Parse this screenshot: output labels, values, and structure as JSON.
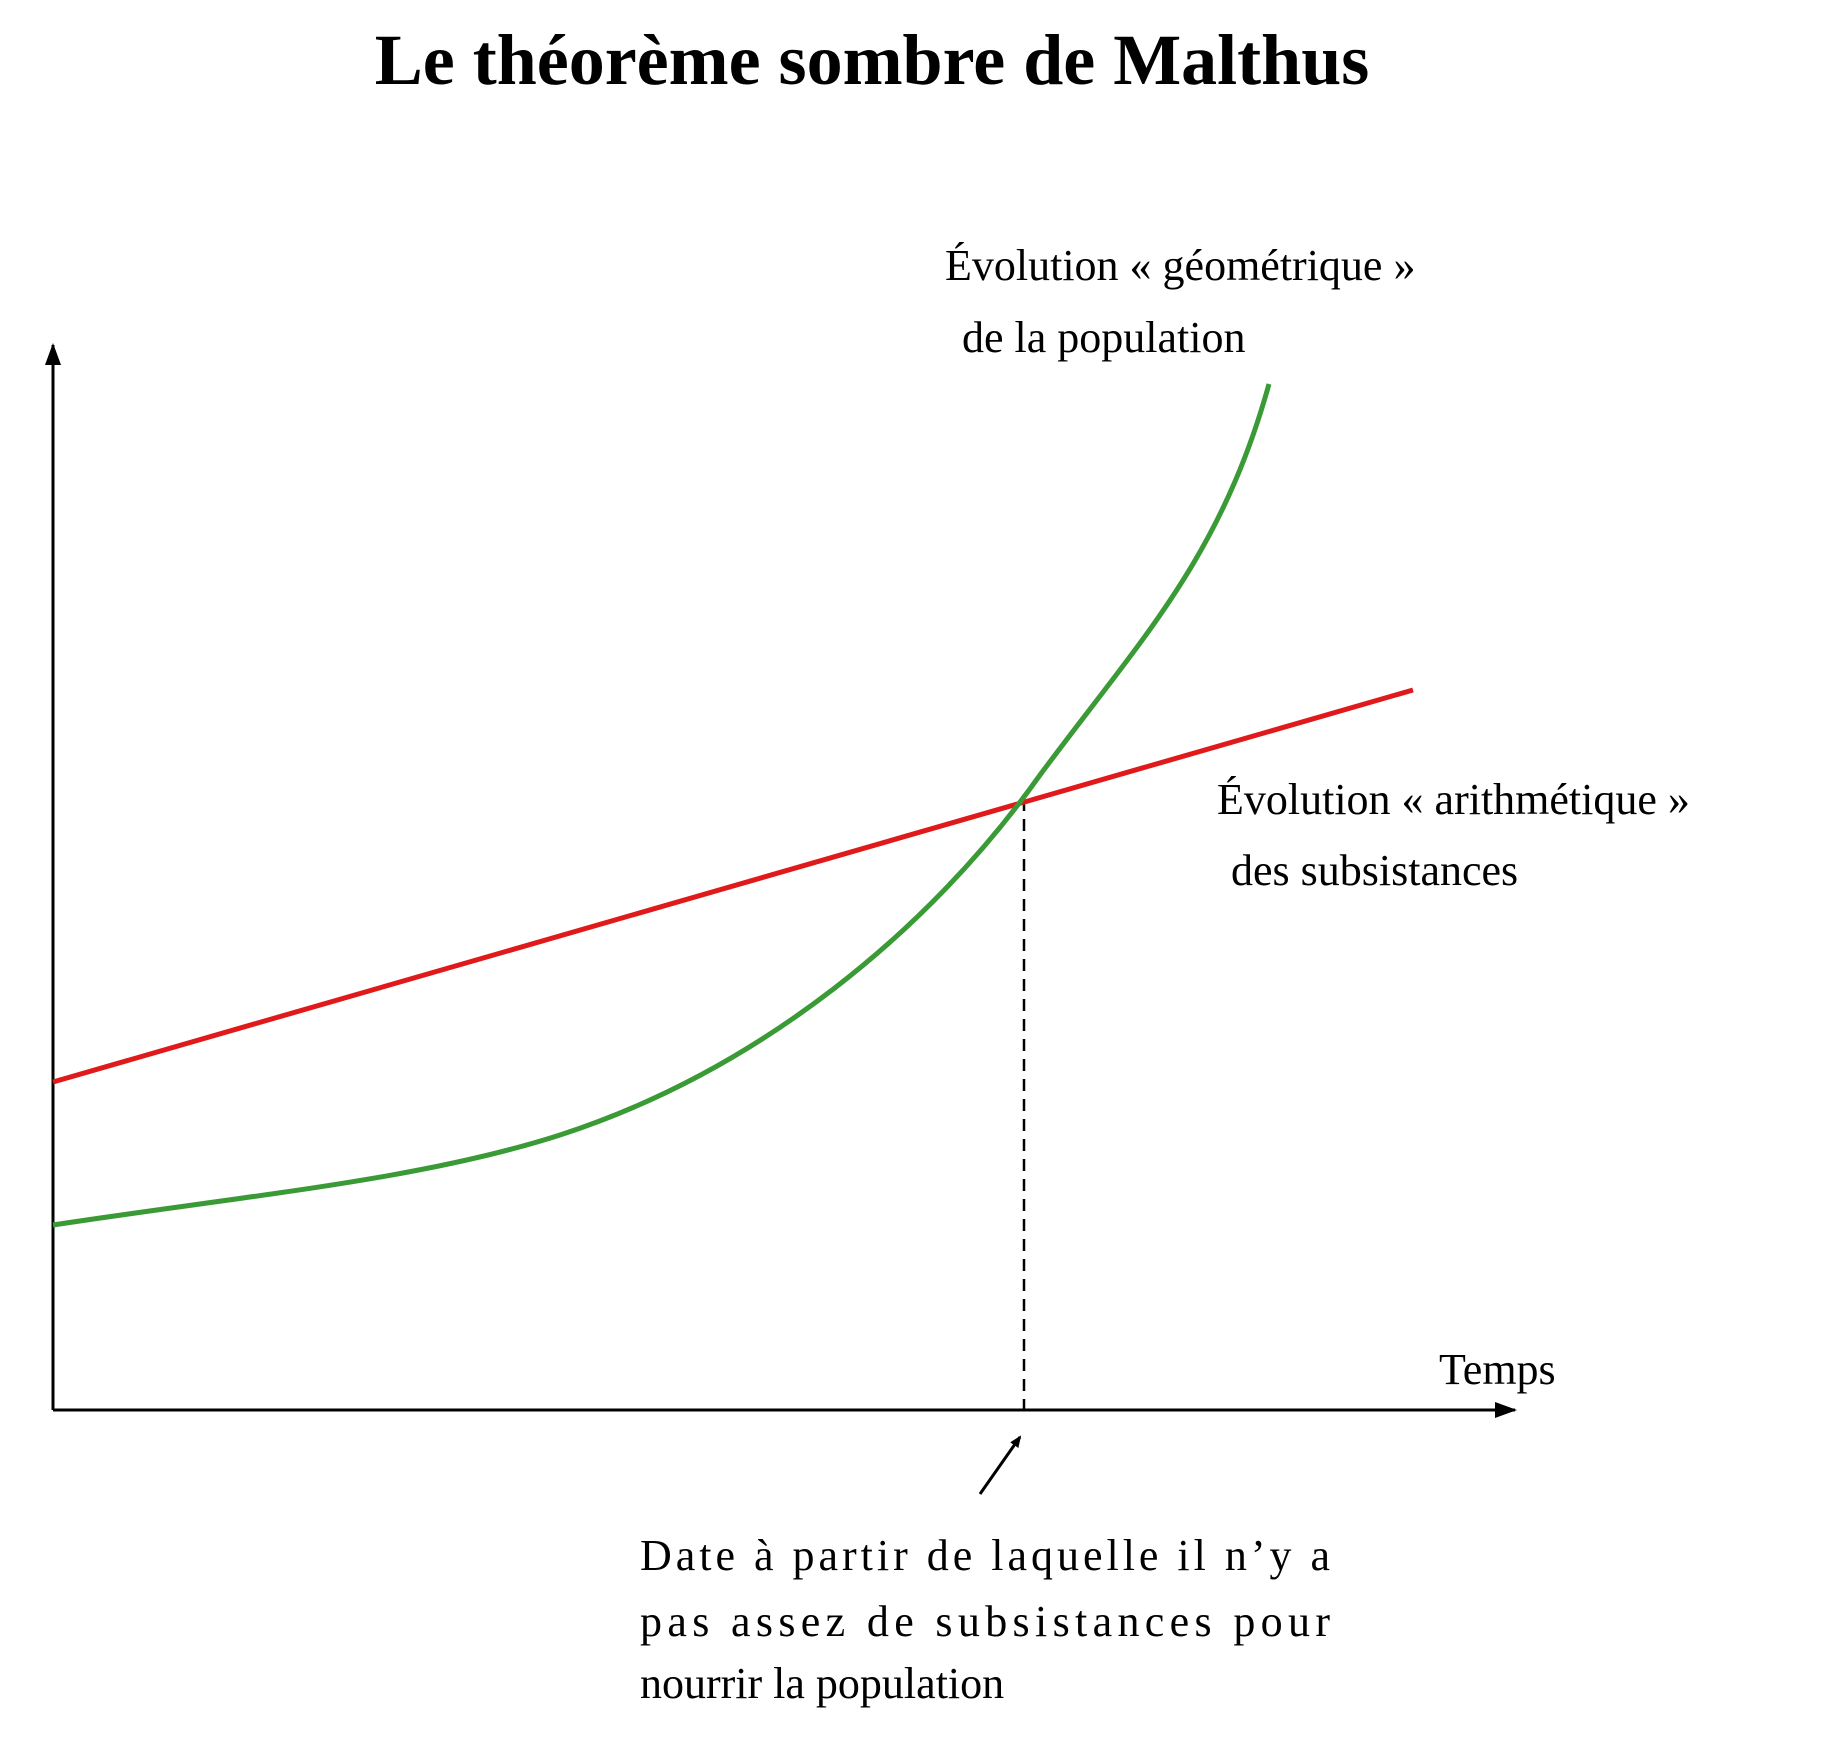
{
  "title": "Le théorème sombre de Malthus",
  "labels": {
    "geometric": [
      "Évolution « géométrique »",
      "de la population"
    ],
    "arithmetic": [
      "Évolution « arithmétique »",
      "des subsistances"
    ],
    "x_axis": "Temps"
  },
  "note": [
    "Date à partir de laquelle il n’y a",
    "pas assez de subsistances pour",
    "nourrir la population"
  ]
}
